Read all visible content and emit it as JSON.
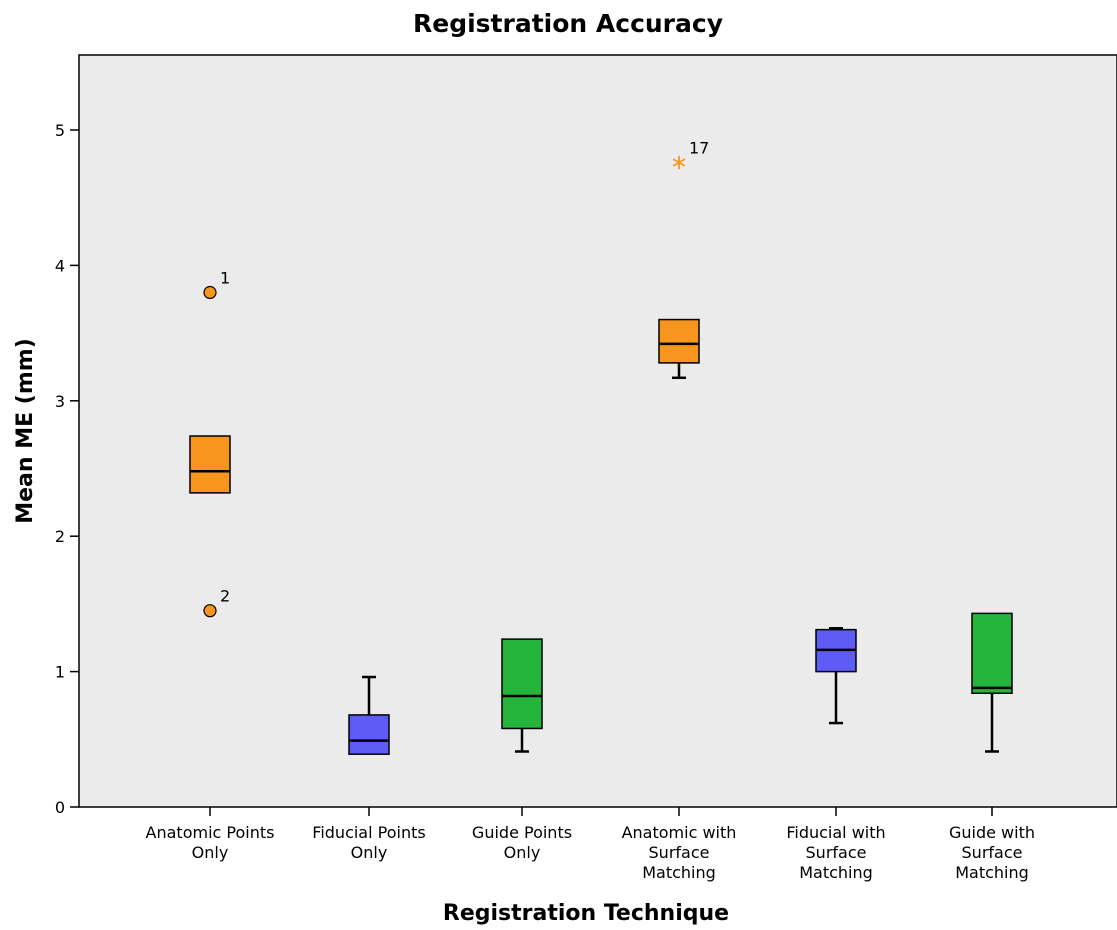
{
  "colors": {
    "orange": "#F7961E",
    "blue": "#5D5DF5",
    "green": "#25B43C",
    "plot_bg": "#EBEBEB",
    "extreme_star": "#F7961E"
  },
  "chart_data": {
    "type": "boxplot",
    "title": "Registration Accuracy",
    "xlabel": "Registration Technique",
    "ylabel": "Mean ME (mm)",
    "ylim": [
      0,
      5.5
    ],
    "yticks": [
      "0",
      "1",
      "2",
      "3",
      "4",
      "5"
    ],
    "grid": false,
    "categories": [
      [
        "Anatomic Points",
        "Only"
      ],
      [
        "Fiducial Points",
        "Only"
      ],
      [
        "Guide Points",
        "Only"
      ],
      [
        "Anatomic with",
        "Surface",
        "Matching"
      ],
      [
        "Fiducial with",
        "Surface",
        "Matching"
      ],
      [
        "Guide with",
        "Surface",
        "Matching"
      ]
    ],
    "boxes": [
      {
        "color": "orange",
        "whisker_low": 2.32,
        "q1": 2.32,
        "median": 2.48,
        "q3": 2.74,
        "whisker_high": 2.74
      },
      {
        "color": "blue",
        "whisker_low": 0.39,
        "q1": 0.39,
        "median": 0.49,
        "q3": 0.68,
        "whisker_high": 0.96
      },
      {
        "color": "green",
        "whisker_low": 0.41,
        "q1": 0.58,
        "median": 0.82,
        "q3": 1.24,
        "whisker_high": 1.24
      },
      {
        "color": "orange",
        "whisker_low": 3.17,
        "q1": 3.28,
        "median": 3.42,
        "q3": 3.6,
        "whisker_high": 3.6
      },
      {
        "color": "blue",
        "whisker_low": 0.62,
        "q1": 1.0,
        "median": 1.16,
        "q3": 1.31,
        "whisker_high": 1.32
      },
      {
        "color": "green",
        "whisker_low": 0.41,
        "q1": 0.84,
        "median": 0.88,
        "q3": 1.43,
        "whisker_high": 1.43
      }
    ],
    "outliers": [
      {
        "box": 0,
        "value": 3.8,
        "label": "1",
        "marker": "circle"
      },
      {
        "box": 0,
        "value": 1.45,
        "label": "2",
        "marker": "circle"
      },
      {
        "box": 3,
        "value": 4.76,
        "label": "17",
        "marker": "star"
      }
    ]
  }
}
